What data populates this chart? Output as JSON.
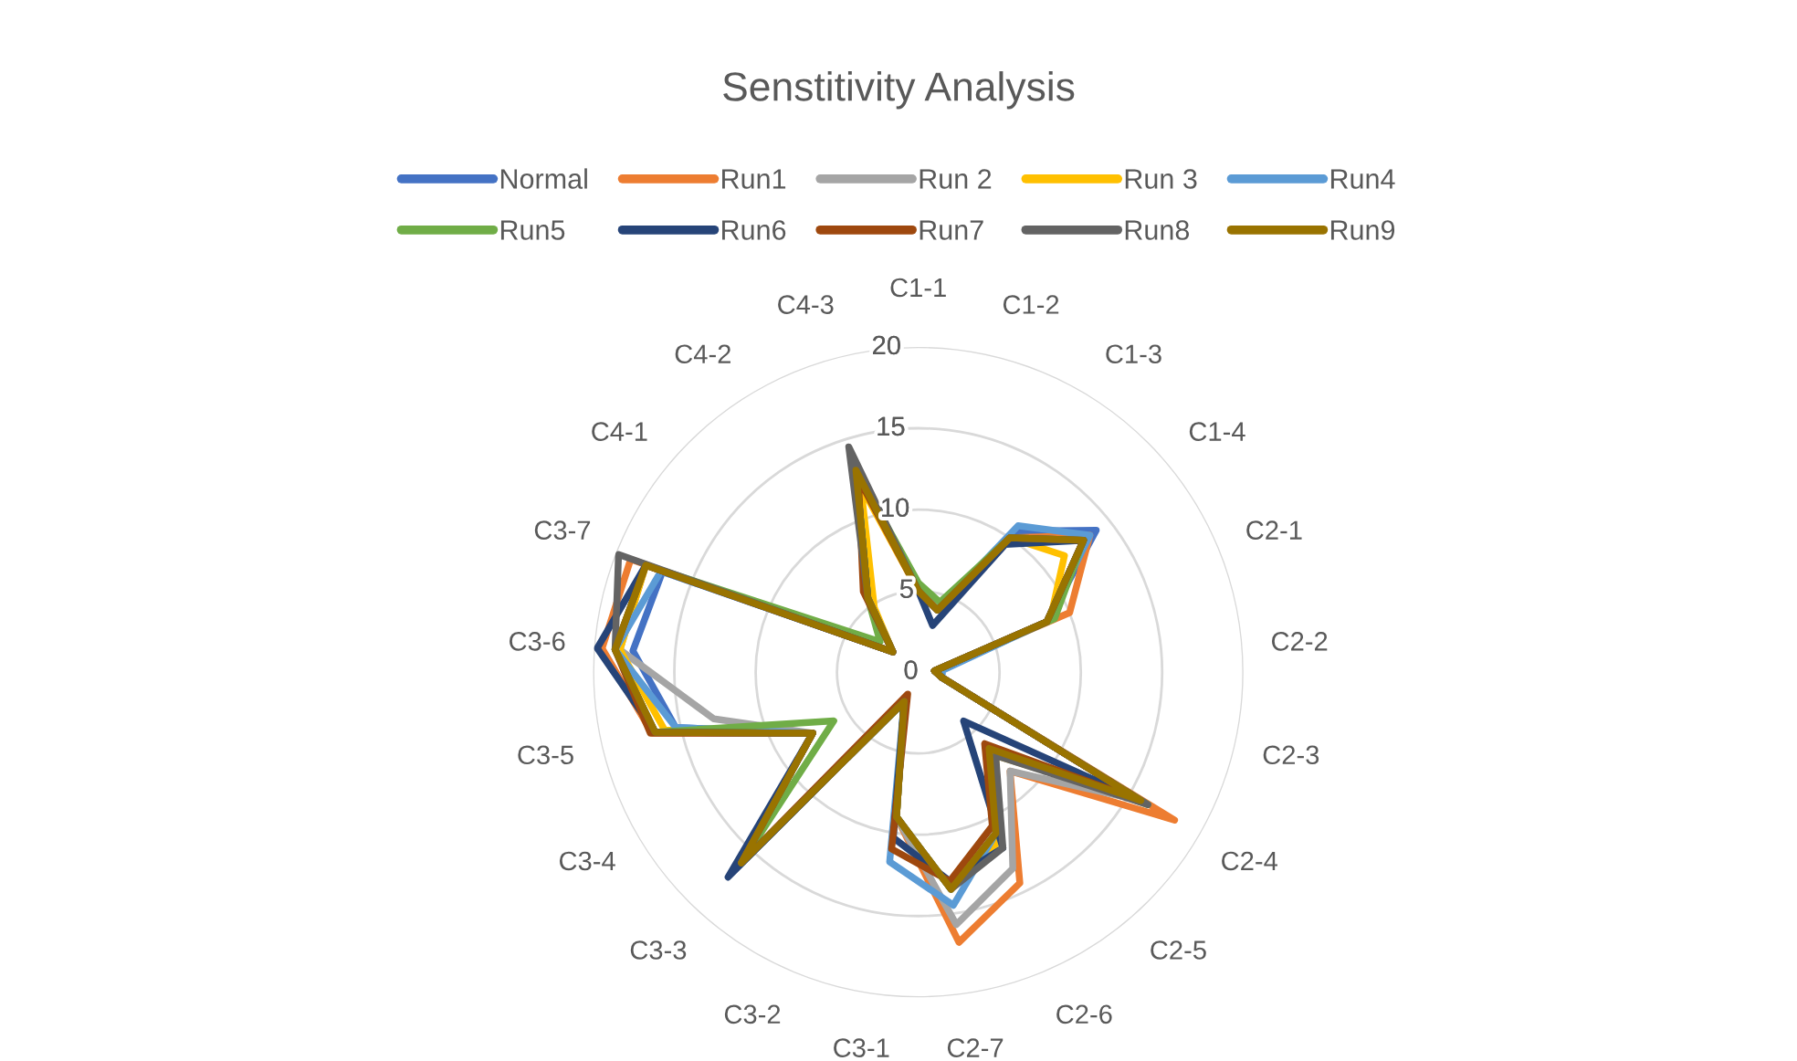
{
  "chart_data": {
    "type": "radar",
    "title": "Senstitivity Analysis",
    "categories": [
      "C1-1",
      "C1-2",
      "C1-3",
      "C1-4",
      "C2-1",
      "C2-2",
      "C2-3",
      "C2-4",
      "C2-5",
      "C2-6",
      "C2-7",
      "C3-1",
      "C3-2",
      "C3-3",
      "C3-4",
      "C3-5",
      "C3-6",
      "C3-7",
      "C4-1",
      "C4-2",
      "C4-3"
    ],
    "series": [
      {
        "name": "Normal",
        "color": "#4472c4",
        "values": [
          5,
          4,
          10.5,
          14,
          8.5,
          1,
          1.5,
          16,
          6.4,
          11,
          13.5,
          9,
          2,
          16,
          7.5,
          15.3,
          17.6,
          16.9,
          2,
          5.5,
          13
        ]
      },
      {
        "name": "Run1",
        "color": "#ed7d31",
        "values": [
          5,
          4,
          10,
          13.5,
          10,
          1,
          1.5,
          18.2,
          8.3,
          14.4,
          16.8,
          9,
          2,
          16,
          7.5,
          16.8,
          19.5,
          19,
          2,
          5.5,
          12.5
        ]
      },
      {
        "name": "Run 2",
        "color": "#a5a5a5",
        "values": [
          5,
          4,
          10,
          13,
          8.5,
          1,
          1.5,
          15.8,
          8.3,
          13.4,
          15.7,
          9,
          2,
          16,
          7.5,
          12.9,
          18.4,
          18,
          2,
          5.5,
          13
        ]
      },
      {
        "name": "Run 3",
        "color": "#ffc000",
        "values": [
          5,
          4,
          10,
          11.5,
          8.7,
          1,
          1.5,
          15.8,
          7,
          11.5,
          13.5,
          9,
          2,
          16,
          7.5,
          16,
          18.4,
          18,
          2,
          4.8,
          12
        ]
      },
      {
        "name": "Run4",
        "color": "#5b9bd5",
        "values": [
          5,
          4,
          10.9,
          13.5,
          8.5,
          1.5,
          1.5,
          16,
          6.4,
          11,
          14.5,
          11.8,
          2,
          16,
          7.5,
          15.3,
          18.7,
          17,
          2,
          5.5,
          13
        ]
      },
      {
        "name": "Run5",
        "color": "#70ad47",
        "values": [
          5.5,
          4.5,
          10,
          13,
          9,
          1,
          1.5,
          16.3,
          6.4,
          11,
          13.5,
          9,
          2,
          16,
          6,
          16.6,
          18.7,
          18,
          3,
          5.5,
          13
        ]
      },
      {
        "name": "Run6",
        "color": "#264478",
        "values": [
          5,
          3,
          9.5,
          13,
          8.5,
          1,
          1.5,
          15.8,
          4.1,
          12,
          13,
          10.3,
          2,
          17.2,
          7.5,
          16.6,
          19.8,
          18,
          2,
          5.5,
          13
        ]
      },
      {
        "name": "Run7",
        "color": "#9e480e",
        "values": [
          5,
          4,
          10,
          13,
          8.5,
          1,
          1.5,
          15.8,
          6,
          10.5,
          13,
          11,
          1.5,
          16,
          7.5,
          16.9,
          18.7,
          18,
          2,
          6,
          12.5
        ]
      },
      {
        "name": "Run8",
        "color": "#636363",
        "values": [
          5,
          4,
          10,
          13,
          8.5,
          1,
          1.5,
          16.3,
          7,
          12,
          13.5,
          9,
          2,
          16,
          7.5,
          16.6,
          18.7,
          19.8,
          2,
          5.5,
          14.5
        ]
      },
      {
        "name": "Run9",
        "color": "#997300",
        "values": [
          5,
          4,
          10,
          13,
          8.5,
          1,
          1.5,
          15.8,
          6.4,
          11,
          13.5,
          9,
          2,
          16,
          7.5,
          16.6,
          18.7,
          18,
          2,
          5.5,
          13
        ]
      }
    ],
    "ylim": [
      0,
      20
    ],
    "yticks": [
      0,
      5,
      10,
      15,
      20
    ],
    "grid": "y",
    "legend": "top"
  }
}
